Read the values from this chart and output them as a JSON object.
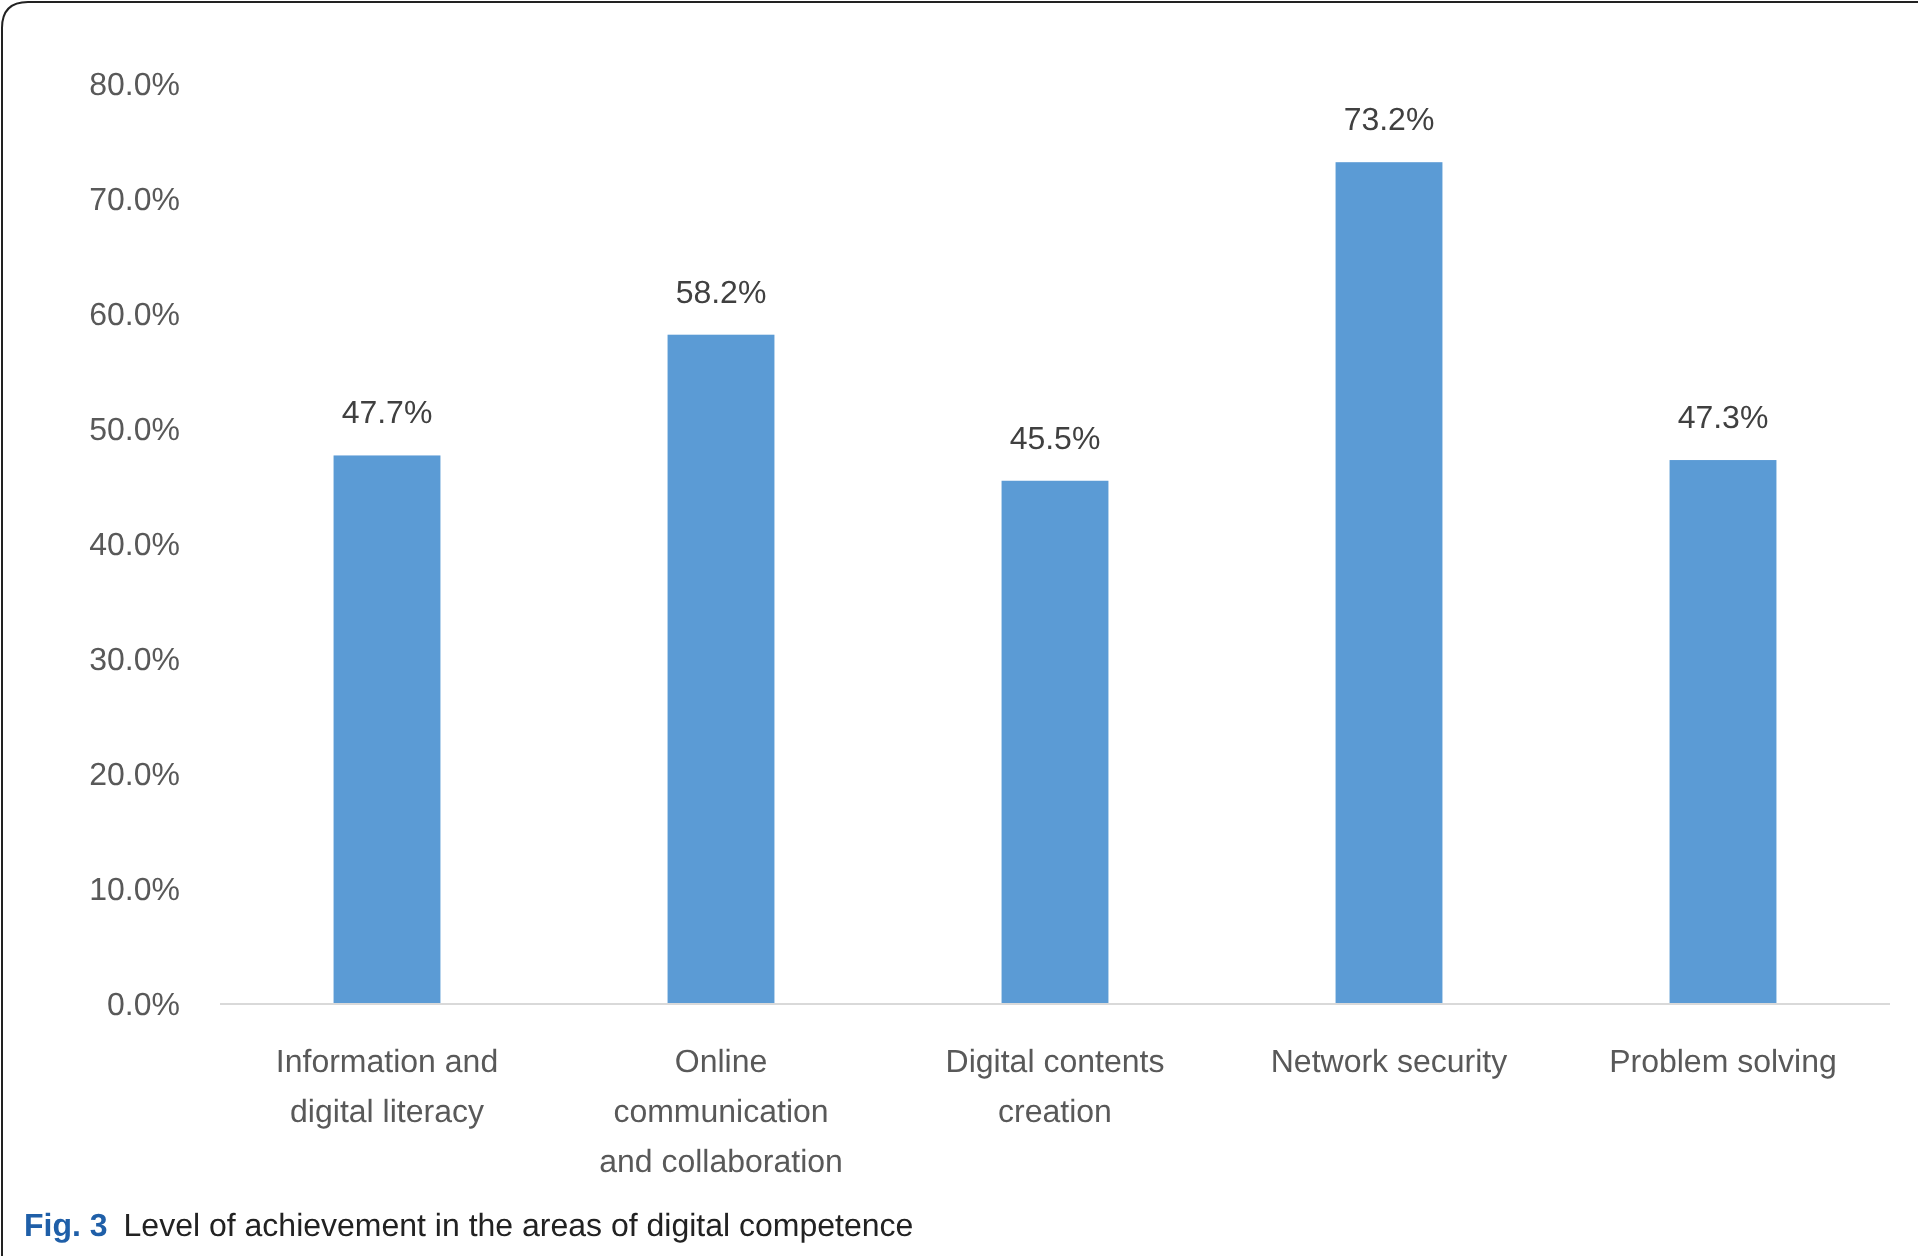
{
  "chart_data": {
    "type": "bar",
    "categories": [
      "Information and digital literacy",
      "Online communication and collaboration",
      "Digital contents creation",
      "Network security",
      "Problem solving"
    ],
    "values": [
      47.7,
      58.2,
      45.5,
      73.2,
      47.3
    ],
    "value_labels": [
      "47.7%",
      "58.2%",
      "45.5%",
      "73.2%",
      "47.3%"
    ],
    "color": "#5b9bd5",
    "ylim": [
      0,
      80
    ],
    "yticks": [
      {
        "value": 0,
        "label": "0.0%"
      },
      {
        "value": 10,
        "label": "10.0%"
      },
      {
        "value": 20,
        "label": "20.0%"
      },
      {
        "value": 30,
        "label": "30.0%"
      },
      {
        "value": 40,
        "label": "40.0%"
      },
      {
        "value": 50,
        "label": "50.0%"
      },
      {
        "value": 60,
        "label": "60.0%"
      },
      {
        "value": 70,
        "label": "70.0%"
      },
      {
        "value": 80,
        "label": "80.0%"
      }
    ],
    "grid": false,
    "annotations": [
      "Fig. 3",
      "Level of achievement in the areas of digital competence"
    ]
  }
}
